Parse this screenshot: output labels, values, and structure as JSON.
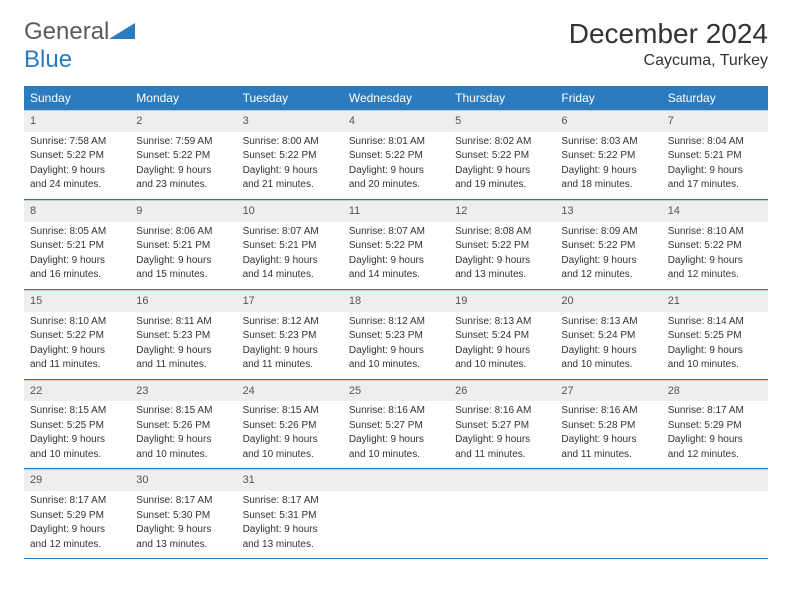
{
  "logo": {
    "text1": "General",
    "text2": "Blue"
  },
  "title": "December 2024",
  "location": "Caycuma, Turkey",
  "colors": {
    "header_bg": "#2b7bbf",
    "header_text": "#ffffff",
    "day_num_bg": "#eeeeee",
    "row_sep": "#2b7bbf",
    "body_text": "#333333"
  },
  "weekdays": [
    "Sunday",
    "Monday",
    "Tuesday",
    "Wednesday",
    "Thursday",
    "Friday",
    "Saturday"
  ],
  "weeks": [
    [
      {
        "n": "1",
        "sunrise": "Sunrise: 7:58 AM",
        "sunset": "Sunset: 5:22 PM",
        "day1": "Daylight: 9 hours",
        "day2": "and 24 minutes."
      },
      {
        "n": "2",
        "sunrise": "Sunrise: 7:59 AM",
        "sunset": "Sunset: 5:22 PM",
        "day1": "Daylight: 9 hours",
        "day2": "and 23 minutes."
      },
      {
        "n": "3",
        "sunrise": "Sunrise: 8:00 AM",
        "sunset": "Sunset: 5:22 PM",
        "day1": "Daylight: 9 hours",
        "day2": "and 21 minutes."
      },
      {
        "n": "4",
        "sunrise": "Sunrise: 8:01 AM",
        "sunset": "Sunset: 5:22 PM",
        "day1": "Daylight: 9 hours",
        "day2": "and 20 minutes."
      },
      {
        "n": "5",
        "sunrise": "Sunrise: 8:02 AM",
        "sunset": "Sunset: 5:22 PM",
        "day1": "Daylight: 9 hours",
        "day2": "and 19 minutes."
      },
      {
        "n": "6",
        "sunrise": "Sunrise: 8:03 AM",
        "sunset": "Sunset: 5:22 PM",
        "day1": "Daylight: 9 hours",
        "day2": "and 18 minutes."
      },
      {
        "n": "7",
        "sunrise": "Sunrise: 8:04 AM",
        "sunset": "Sunset: 5:21 PM",
        "day1": "Daylight: 9 hours",
        "day2": "and 17 minutes."
      }
    ],
    [
      {
        "n": "8",
        "sunrise": "Sunrise: 8:05 AM",
        "sunset": "Sunset: 5:21 PM",
        "day1": "Daylight: 9 hours",
        "day2": "and 16 minutes."
      },
      {
        "n": "9",
        "sunrise": "Sunrise: 8:06 AM",
        "sunset": "Sunset: 5:21 PM",
        "day1": "Daylight: 9 hours",
        "day2": "and 15 minutes."
      },
      {
        "n": "10",
        "sunrise": "Sunrise: 8:07 AM",
        "sunset": "Sunset: 5:21 PM",
        "day1": "Daylight: 9 hours",
        "day2": "and 14 minutes."
      },
      {
        "n": "11",
        "sunrise": "Sunrise: 8:07 AM",
        "sunset": "Sunset: 5:22 PM",
        "day1": "Daylight: 9 hours",
        "day2": "and 14 minutes."
      },
      {
        "n": "12",
        "sunrise": "Sunrise: 8:08 AM",
        "sunset": "Sunset: 5:22 PM",
        "day1": "Daylight: 9 hours",
        "day2": "and 13 minutes."
      },
      {
        "n": "13",
        "sunrise": "Sunrise: 8:09 AM",
        "sunset": "Sunset: 5:22 PM",
        "day1": "Daylight: 9 hours",
        "day2": "and 12 minutes."
      },
      {
        "n": "14",
        "sunrise": "Sunrise: 8:10 AM",
        "sunset": "Sunset: 5:22 PM",
        "day1": "Daylight: 9 hours",
        "day2": "and 12 minutes."
      }
    ],
    [
      {
        "n": "15",
        "sunrise": "Sunrise: 8:10 AM",
        "sunset": "Sunset: 5:22 PM",
        "day1": "Daylight: 9 hours",
        "day2": "and 11 minutes."
      },
      {
        "n": "16",
        "sunrise": "Sunrise: 8:11 AM",
        "sunset": "Sunset: 5:23 PM",
        "day1": "Daylight: 9 hours",
        "day2": "and 11 minutes."
      },
      {
        "n": "17",
        "sunrise": "Sunrise: 8:12 AM",
        "sunset": "Sunset: 5:23 PM",
        "day1": "Daylight: 9 hours",
        "day2": "and 11 minutes."
      },
      {
        "n": "18",
        "sunrise": "Sunrise: 8:12 AM",
        "sunset": "Sunset: 5:23 PM",
        "day1": "Daylight: 9 hours",
        "day2": "and 10 minutes."
      },
      {
        "n": "19",
        "sunrise": "Sunrise: 8:13 AM",
        "sunset": "Sunset: 5:24 PM",
        "day1": "Daylight: 9 hours",
        "day2": "and 10 minutes."
      },
      {
        "n": "20",
        "sunrise": "Sunrise: 8:13 AM",
        "sunset": "Sunset: 5:24 PM",
        "day1": "Daylight: 9 hours",
        "day2": "and 10 minutes."
      },
      {
        "n": "21",
        "sunrise": "Sunrise: 8:14 AM",
        "sunset": "Sunset: 5:25 PM",
        "day1": "Daylight: 9 hours",
        "day2": "and 10 minutes."
      }
    ],
    [
      {
        "n": "22",
        "sunrise": "Sunrise: 8:15 AM",
        "sunset": "Sunset: 5:25 PM",
        "day1": "Daylight: 9 hours",
        "day2": "and 10 minutes."
      },
      {
        "n": "23",
        "sunrise": "Sunrise: 8:15 AM",
        "sunset": "Sunset: 5:26 PM",
        "day1": "Daylight: 9 hours",
        "day2": "and 10 minutes."
      },
      {
        "n": "24",
        "sunrise": "Sunrise: 8:15 AM",
        "sunset": "Sunset: 5:26 PM",
        "day1": "Daylight: 9 hours",
        "day2": "and 10 minutes."
      },
      {
        "n": "25",
        "sunrise": "Sunrise: 8:16 AM",
        "sunset": "Sunset: 5:27 PM",
        "day1": "Daylight: 9 hours",
        "day2": "and 10 minutes."
      },
      {
        "n": "26",
        "sunrise": "Sunrise: 8:16 AM",
        "sunset": "Sunset: 5:27 PM",
        "day1": "Daylight: 9 hours",
        "day2": "and 11 minutes."
      },
      {
        "n": "27",
        "sunrise": "Sunrise: 8:16 AM",
        "sunset": "Sunset: 5:28 PM",
        "day1": "Daylight: 9 hours",
        "day2": "and 11 minutes."
      },
      {
        "n": "28",
        "sunrise": "Sunrise: 8:17 AM",
        "sunset": "Sunset: 5:29 PM",
        "day1": "Daylight: 9 hours",
        "day2": "and 12 minutes."
      }
    ],
    [
      {
        "n": "29",
        "sunrise": "Sunrise: 8:17 AM",
        "sunset": "Sunset: 5:29 PM",
        "day1": "Daylight: 9 hours",
        "day2": "and 12 minutes."
      },
      {
        "n": "30",
        "sunrise": "Sunrise: 8:17 AM",
        "sunset": "Sunset: 5:30 PM",
        "day1": "Daylight: 9 hours",
        "day2": "and 13 minutes."
      },
      {
        "n": "31",
        "sunrise": "Sunrise: 8:17 AM",
        "sunset": "Sunset: 5:31 PM",
        "day1": "Daylight: 9 hours",
        "day2": "and 13 minutes."
      },
      {
        "empty": true,
        "n": ".",
        "sunrise": "",
        "sunset": "",
        "day1": "",
        "day2": ""
      },
      {
        "empty": true,
        "n": ".",
        "sunrise": "",
        "sunset": "",
        "day1": "",
        "day2": ""
      },
      {
        "empty": true,
        "n": ".",
        "sunrise": "",
        "sunset": "",
        "day1": "",
        "day2": ""
      },
      {
        "empty": true,
        "n": ".",
        "sunrise": "",
        "sunset": "",
        "day1": "",
        "day2": ""
      }
    ]
  ]
}
